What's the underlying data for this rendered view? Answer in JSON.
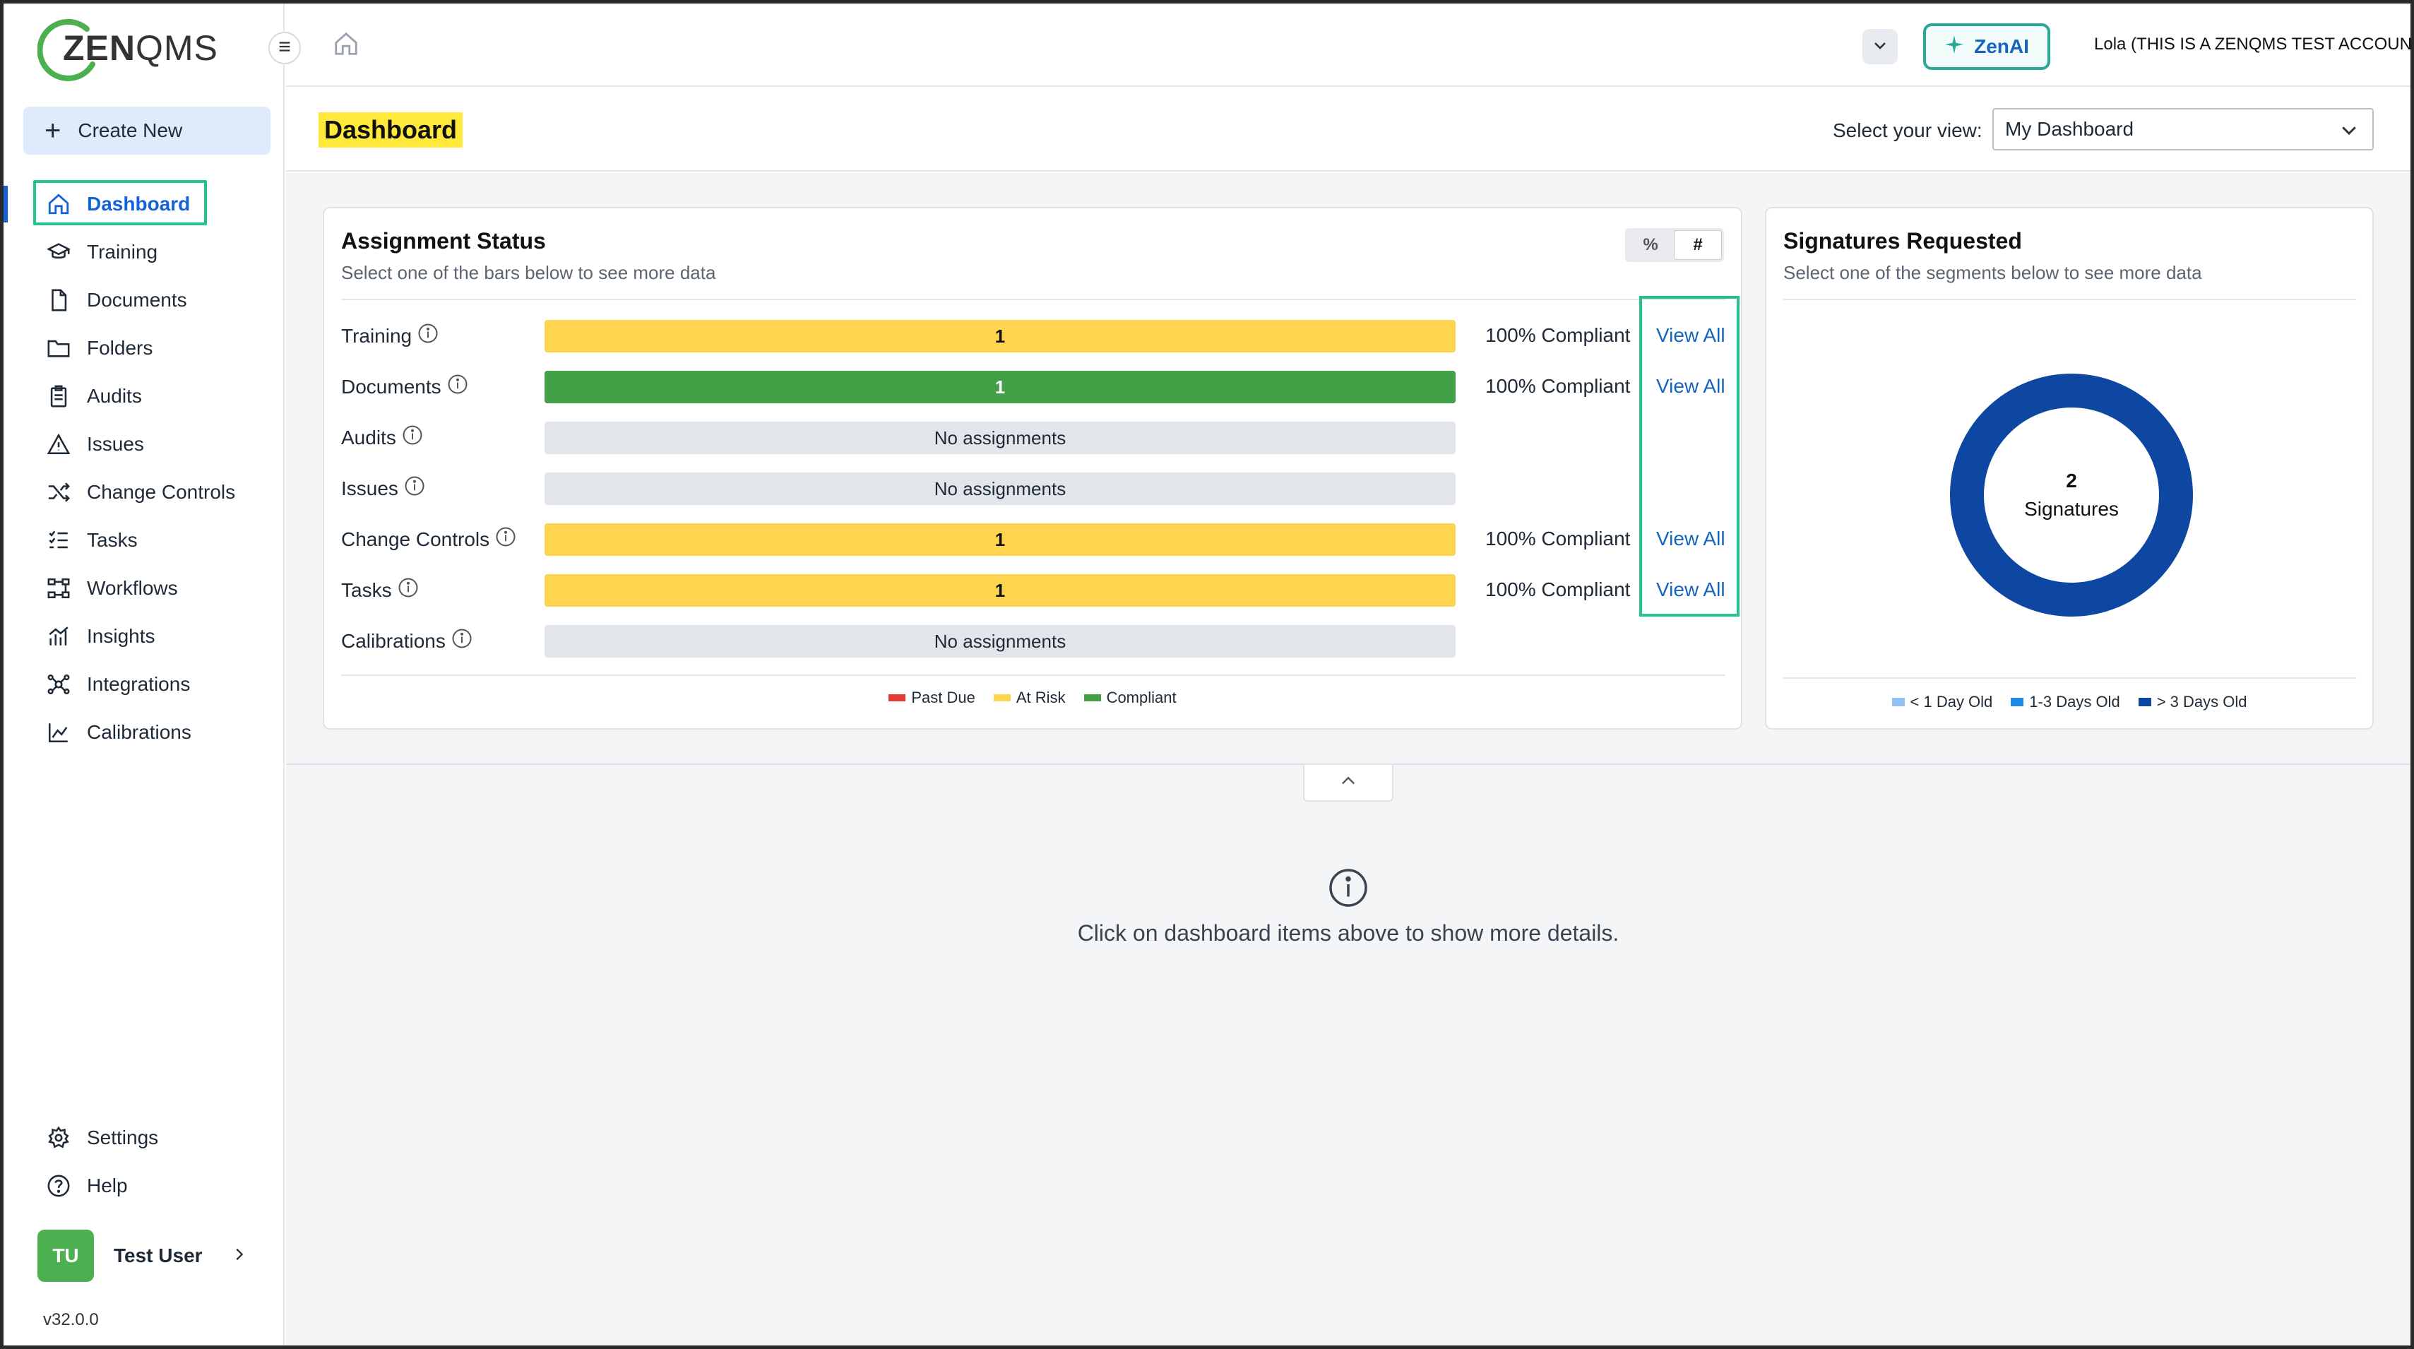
{
  "app": {
    "logo_text_bold": "ZEN",
    "logo_text_light": "QMS",
    "version": "v32.0.0"
  },
  "sidebar": {
    "create_new_label": "Create New",
    "items": [
      {
        "label": "Dashboard",
        "icon": "home-icon",
        "active": true
      },
      {
        "label": "Training",
        "icon": "graduation-cap-icon"
      },
      {
        "label": "Documents",
        "icon": "document-icon"
      },
      {
        "label": "Folders",
        "icon": "folder-icon"
      },
      {
        "label": "Audits",
        "icon": "clipboard-icon"
      },
      {
        "label": "Issues",
        "icon": "warning-icon"
      },
      {
        "label": "Change Controls",
        "icon": "shuffle-icon"
      },
      {
        "label": "Tasks",
        "icon": "checklist-icon"
      },
      {
        "label": "Workflows",
        "icon": "workflow-icon"
      },
      {
        "label": "Insights",
        "icon": "insights-chart-icon"
      },
      {
        "label": "Integrations",
        "icon": "integrations-icon"
      },
      {
        "label": "Calibrations",
        "icon": "line-chart-icon"
      }
    ],
    "bottom_items": [
      {
        "label": "Settings",
        "icon": "gear-icon"
      },
      {
        "label": "Help",
        "icon": "help-icon"
      }
    ],
    "user": {
      "initials": "TU",
      "name": "Test User"
    }
  },
  "topbar": {
    "zenai_label": "ZenAI",
    "account_label": "Lola (THIS IS A ZENQMS TEST ACCOUNT)"
  },
  "header": {
    "title": "Dashboard",
    "view_label": "Select your view:",
    "view_value": "My Dashboard"
  },
  "assignment_status": {
    "title": "Assignment Status",
    "subtitle": "Select one of the bars below to see more data",
    "toggle": [
      "%",
      "#"
    ],
    "active_toggle": "#",
    "rows": [
      {
        "label": "Training",
        "bar_text": "1",
        "status": "At Risk",
        "compliance": "100% Compliant",
        "link": "View All"
      },
      {
        "label": "Documents",
        "bar_text": "1",
        "status": "Compliant",
        "compliance": "100% Compliant",
        "link": "View All"
      },
      {
        "label": "Audits",
        "bar_text": "No assignments",
        "status": "none",
        "compliance": "",
        "link": ""
      },
      {
        "label": "Issues",
        "bar_text": "No assignments",
        "status": "none",
        "compliance": "",
        "link": ""
      },
      {
        "label": "Change Controls",
        "bar_text": "1",
        "status": "At Risk",
        "compliance": "100% Compliant",
        "link": "View All"
      },
      {
        "label": "Tasks",
        "bar_text": "1",
        "status": "At Risk",
        "compliance": "100% Compliant",
        "link": "View All"
      },
      {
        "label": "Calibrations",
        "bar_text": "No assignments",
        "status": "none",
        "compliance": "",
        "link": ""
      }
    ],
    "legend": [
      {
        "label": "Past Due",
        "color": "#e53935"
      },
      {
        "label": "At Risk",
        "color": "#ffd54f"
      },
      {
        "label": "Compliant",
        "color": "#43a047"
      }
    ]
  },
  "signatures": {
    "title": "Signatures Requested",
    "subtitle": "Select one of the segments below to see more data",
    "center_count": "2",
    "center_label": "Signatures",
    "segments": [
      {
        "label": "< 1 Day Old",
        "color": "#90c2f5",
        "value": 0
      },
      {
        "label": "1-3 Days Old",
        "color": "#1e88e5",
        "value": 0
      },
      {
        "label": "> 3 Days Old",
        "color": "#0d47a1",
        "value": 2
      }
    ]
  },
  "detail": {
    "message": "Click on dashboard items above to show more details."
  }
}
